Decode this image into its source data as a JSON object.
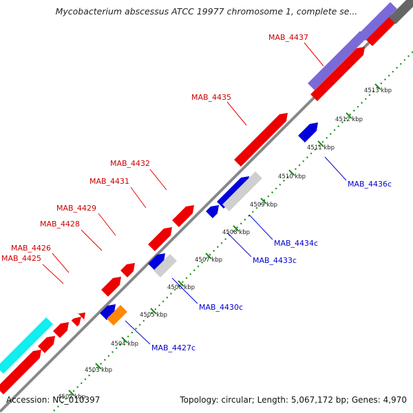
{
  "title": "Mycobacterium abscessus ATCC 19977 chromosome 1, complete se...",
  "accession_label": "Accession: NC_010397",
  "summary_label": "Topology: circular; Length: 5,067,172 bp; Genes: 4,970",
  "colors": {
    "forward_gene": "#ee0000",
    "reverse_gene": "#0000dd",
    "backbone": "#888888",
    "tick": "#1a8a1a",
    "purple": "#7a6ad8",
    "cyan": "#10eeee",
    "grey": "#cfcfcf",
    "orange": "#ff8800",
    "dark_grey": "#666666"
  },
  "diagram": {
    "tick_labels": [
      "4502 kbp",
      "4503 kbp",
      "4504 kbp",
      "4505 kbp",
      "4506 kbp",
      "4507 kbp",
      "4508 kbp",
      "4509 kbp",
      "4510 kbp",
      "4511 kbp",
      "4512 kbp",
      "4513 kbp"
    ],
    "gene_labels_forward": [
      "MAB_4425",
      "MAB_4426",
      "MAB_4428",
      "MAB_4429",
      "MAB_4431",
      "MAB_4432",
      "MAB_4435",
      "MAB_4437"
    ],
    "gene_labels_reverse": [
      "MAB_4427c",
      "MAB_4430c",
      "MAB_4433c",
      "MAB_4434c",
      "MAB_4436c"
    ]
  }
}
